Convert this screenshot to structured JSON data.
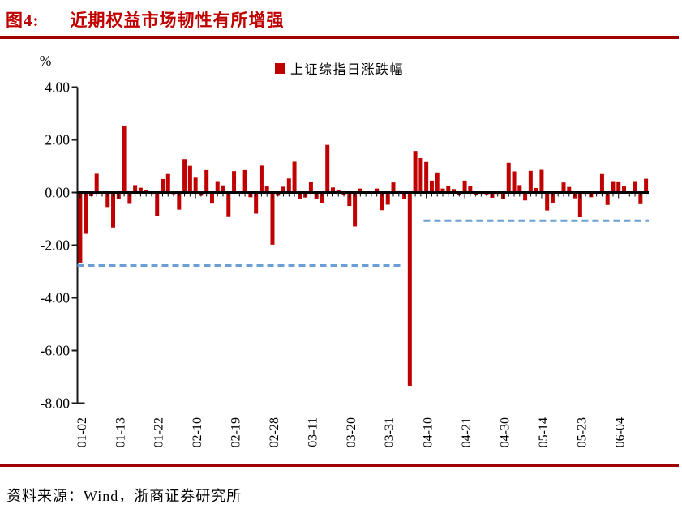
{
  "figure": {
    "label": "图4:",
    "title": "近期权益市场韧性有所增强"
  },
  "source_line": "资料来源：Wind，浙商证券研究所",
  "colors": {
    "bar_red": "#C00000",
    "title_red": "#C00000",
    "rule_red": "#A00000",
    "dashed_blue": "#6C9FD4",
    "axis_black": "#1A1A1A"
  },
  "chart_data": {
    "type": "bar",
    "series_name": "上证综指日涨跌幅",
    "unit_label": "%",
    "bar_color": "#C00000",
    "grid": false,
    "legend_position": "top-center",
    "ylim": [
      -8,
      4
    ],
    "yticks": [
      4,
      2,
      0,
      -2,
      -4,
      -6,
      -8
    ],
    "ytick_labels": [
      "4.00",
      "2.00",
      "0.00",
      "-2.00",
      "-4.00",
      "-6.00",
      "-8.00"
    ],
    "xtick_interval": 7,
    "xtick_labels": [
      "01-02",
      "01-13",
      "01-22",
      "02-10",
      "02-19",
      "02-28",
      "03-11",
      "03-20",
      "03-31",
      "04-10",
      "04-21",
      "04-30",
      "05-14",
      "05-23",
      "06-04"
    ],
    "categories": [
      "01-02",
      "01-03",
      "01-06",
      "01-07",
      "01-08",
      "01-09",
      "01-10",
      "01-13",
      "01-14",
      "01-15",
      "01-16",
      "01-17",
      "01-20",
      "01-21",
      "01-22",
      "01-23",
      "01-24",
      "01-27",
      "02-05",
      "02-06",
      "02-07",
      "02-10",
      "02-11",
      "02-12",
      "02-13",
      "02-14",
      "02-17",
      "02-18",
      "02-19",
      "02-20",
      "02-21",
      "02-24",
      "02-25",
      "02-26",
      "02-27",
      "02-28",
      "03-03",
      "03-04",
      "03-05",
      "03-06",
      "03-07",
      "03-10",
      "03-11",
      "03-12",
      "03-13",
      "03-14",
      "03-17",
      "03-18",
      "03-19",
      "03-20",
      "03-21",
      "03-24",
      "03-25",
      "03-26",
      "03-27",
      "03-28",
      "03-31",
      "04-01",
      "04-02",
      "04-03",
      "04-07",
      "04-08",
      "04-09",
      "04-10",
      "04-11",
      "04-14",
      "04-15",
      "04-16",
      "04-17",
      "04-18",
      "04-21",
      "04-22",
      "04-23",
      "04-24",
      "04-25",
      "04-28",
      "04-29",
      "04-30",
      "05-06",
      "05-07",
      "05-08",
      "05-09",
      "05-12",
      "05-13",
      "05-14",
      "05-15",
      "05-16",
      "05-19",
      "05-20",
      "05-21",
      "05-22",
      "05-23",
      "05-26",
      "05-27",
      "05-28",
      "05-29",
      "05-30",
      "06-03",
      "06-04",
      "06-05",
      "06-06",
      "06-09",
      "06-10",
      "06-11"
    ],
    "values": [
      -2.66,
      -1.57,
      -0.14,
      0.71,
      -0.02,
      -0.58,
      -1.33,
      -0.25,
      2.54,
      -0.43,
      0.28,
      0.18,
      0.08,
      -0.05,
      -0.89,
      0.51,
      0.7,
      -0.06,
      -0.65,
      1.27,
      1.01,
      0.56,
      -0.12,
      0.85,
      -0.42,
      0.43,
      0.27,
      -0.93,
      0.81,
      -0.02,
      0.85,
      -0.18,
      -0.8,
      1.02,
      0.23,
      -1.98,
      -0.12,
      0.22,
      0.53,
      1.17,
      -0.25,
      -0.19,
      0.41,
      -0.23,
      -0.39,
      1.81,
      0.19,
      0.11,
      -0.1,
      -0.51,
      -1.29,
      0.15,
      0.0,
      -0.04,
      0.15,
      -0.67,
      -0.46,
      0.38,
      0.05,
      -0.24,
      -7.34,
      1.58,
      1.31,
      1.16,
      0.45,
      0.76,
      0.15,
      0.26,
      0.13,
      -0.11,
      0.45,
      0.25,
      -0.1,
      0.03,
      -0.07,
      -0.2,
      -0.05,
      -0.23,
      1.13,
      0.8,
      0.28,
      -0.3,
      0.82,
      0.17,
      0.86,
      -0.68,
      -0.4,
      0.0,
      0.38,
      0.21,
      -0.22,
      -0.94,
      -0.05,
      -0.18,
      0.0,
      0.7,
      -0.47,
      0.43,
      0.42,
      0.23,
      0.04,
      0.43,
      -0.44,
      0.52
    ],
    "reference_lines": [
      {
        "y": -2.77,
        "x_start_frac": 0.0,
        "x_end_frac": 0.569,
        "color": "#6C9FD4",
        "style": "dashed"
      },
      {
        "y": -1.07,
        "x_start_frac": 0.606,
        "x_end_frac": 1.0,
        "color": "#6C9FD4",
        "style": "dashed"
      }
    ]
  }
}
